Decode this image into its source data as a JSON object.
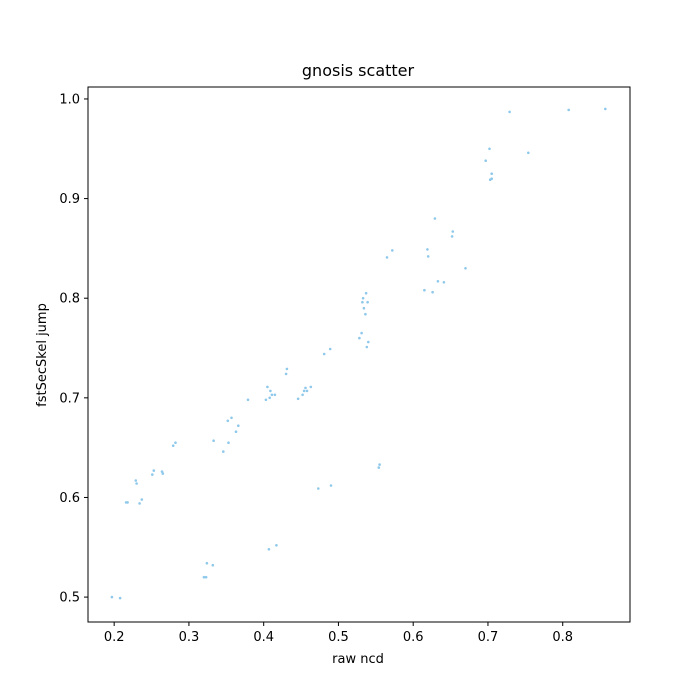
{
  "chart_data": {
    "type": "scatter",
    "title": "gnosis scatter",
    "xlabel": "raw ncd",
    "ylabel": "fstSecSkel jump",
    "xlim": [
      0.165,
      0.89
    ],
    "ylim": [
      0.475,
      1.012
    ],
    "xticks": [
      0.2,
      0.3,
      0.4,
      0.5,
      0.6,
      0.7,
      0.8
    ],
    "yticks": [
      0.5,
      0.6,
      0.7,
      0.8,
      0.9,
      1.0
    ],
    "xtick_labels": [
      "0.2",
      "0.3",
      "0.4",
      "0.5",
      "0.6",
      "0.7",
      "0.8"
    ],
    "ytick_labels": [
      "0.5",
      "0.6",
      "0.7",
      "0.8",
      "0.9",
      "1.0"
    ],
    "grid": false,
    "point_color": "#8ec8ea",
    "points": [
      {
        "x": 0.197,
        "y": 0.5
      },
      {
        "x": 0.208,
        "y": 0.499
      },
      {
        "x": 0.216,
        "y": 0.595
      },
      {
        "x": 0.218,
        "y": 0.595
      },
      {
        "x": 0.229,
        "y": 0.617
      },
      {
        "x": 0.23,
        "y": 0.614
      },
      {
        "x": 0.234,
        "y": 0.594
      },
      {
        "x": 0.237,
        "y": 0.598
      },
      {
        "x": 0.251,
        "y": 0.623
      },
      {
        "x": 0.253,
        "y": 0.627
      },
      {
        "x": 0.264,
        "y": 0.626
      },
      {
        "x": 0.265,
        "y": 0.624
      },
      {
        "x": 0.279,
        "y": 0.652
      },
      {
        "x": 0.282,
        "y": 0.655
      },
      {
        "x": 0.32,
        "y": 0.52
      },
      {
        "x": 0.323,
        "y": 0.52
      },
      {
        "x": 0.324,
        "y": 0.534
      },
      {
        "x": 0.332,
        "y": 0.532
      },
      {
        "x": 0.333,
        "y": 0.657
      },
      {
        "x": 0.346,
        "y": 0.646
      },
      {
        "x": 0.352,
        "y": 0.677
      },
      {
        "x": 0.353,
        "y": 0.655
      },
      {
        "x": 0.357,
        "y": 0.68
      },
      {
        "x": 0.363,
        "y": 0.666
      },
      {
        "x": 0.366,
        "y": 0.672
      },
      {
        "x": 0.379,
        "y": 0.698
      },
      {
        "x": 0.403,
        "y": 0.698
      },
      {
        "x": 0.405,
        "y": 0.711
      },
      {
        "x": 0.407,
        "y": 0.548
      },
      {
        "x": 0.408,
        "y": 0.7
      },
      {
        "x": 0.409,
        "y": 0.707
      },
      {
        "x": 0.411,
        "y": 0.703
      },
      {
        "x": 0.415,
        "y": 0.703
      },
      {
        "x": 0.417,
        "y": 0.552
      },
      {
        "x": 0.43,
        "y": 0.724
      },
      {
        "x": 0.431,
        "y": 0.729
      },
      {
        "x": 0.446,
        "y": 0.699
      },
      {
        "x": 0.452,
        "y": 0.703
      },
      {
        "x": 0.454,
        "y": 0.707
      },
      {
        "x": 0.456,
        "y": 0.71
      },
      {
        "x": 0.458,
        "y": 0.707
      },
      {
        "x": 0.463,
        "y": 0.711
      },
      {
        "x": 0.473,
        "y": 0.609
      },
      {
        "x": 0.481,
        "y": 0.744
      },
      {
        "x": 0.489,
        "y": 0.749
      },
      {
        "x": 0.49,
        "y": 0.612
      },
      {
        "x": 0.528,
        "y": 0.76
      },
      {
        "x": 0.531,
        "y": 0.765
      },
      {
        "x": 0.532,
        "y": 0.796
      },
      {
        "x": 0.533,
        "y": 0.8
      },
      {
        "x": 0.534,
        "y": 0.79
      },
      {
        "x": 0.536,
        "y": 0.784
      },
      {
        "x": 0.537,
        "y": 0.805
      },
      {
        "x": 0.538,
        "y": 0.751
      },
      {
        "x": 0.539,
        "y": 0.796
      },
      {
        "x": 0.54,
        "y": 0.756
      },
      {
        "x": 0.554,
        "y": 0.63
      },
      {
        "x": 0.555,
        "y": 0.633
      },
      {
        "x": 0.565,
        "y": 0.841
      },
      {
        "x": 0.572,
        "y": 0.848
      },
      {
        "x": 0.615,
        "y": 0.808
      },
      {
        "x": 0.619,
        "y": 0.849
      },
      {
        "x": 0.62,
        "y": 0.842
      },
      {
        "x": 0.626,
        "y": 0.806
      },
      {
        "x": 0.629,
        "y": 0.88
      },
      {
        "x": 0.633,
        "y": 0.817
      },
      {
        "x": 0.641,
        "y": 0.816
      },
      {
        "x": 0.652,
        "y": 0.862
      },
      {
        "x": 0.653,
        "y": 0.867
      },
      {
        "x": 0.67,
        "y": 0.83
      },
      {
        "x": 0.697,
        "y": 0.938
      },
      {
        "x": 0.702,
        "y": 0.95
      },
      {
        "x": 0.703,
        "y": 0.919
      },
      {
        "x": 0.705,
        "y": 0.925
      },
      {
        "x": 0.705,
        "y": 0.92
      },
      {
        "x": 0.729,
        "y": 0.987
      },
      {
        "x": 0.754,
        "y": 0.946
      },
      {
        "x": 0.808,
        "y": 0.989
      },
      {
        "x": 0.857,
        "y": 0.99
      }
    ]
  }
}
